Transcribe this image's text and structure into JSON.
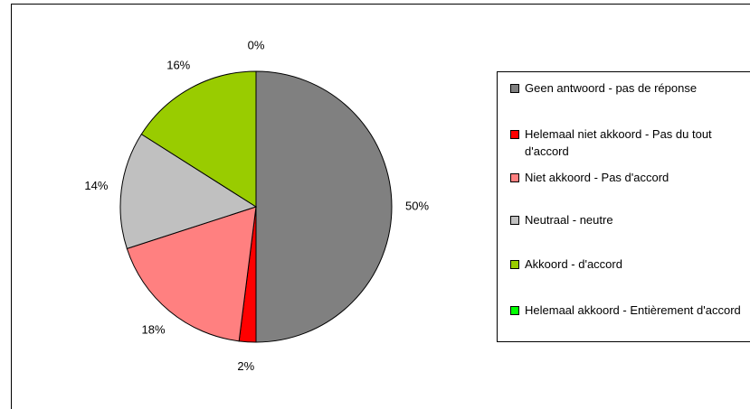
{
  "chart_data": {
    "type": "pie",
    "categories": [
      "Geen antwoord - pas de réponse",
      "Helemaal niet akkoord - Pas du tout d'accord",
      "Niet akkoord - Pas d'accord",
      "Neutraal - neutre",
      "Akkoord - d'accord",
      "Helemaal akkoord - Entièrement d'accord"
    ],
    "values": [
      50,
      2,
      18,
      14,
      16,
      0
    ],
    "value_labels": [
      "50%",
      "2%",
      "18%",
      "14%",
      "16%",
      "0%"
    ],
    "colors": [
      "#808080",
      "#ff0000",
      "#ff8080",
      "#c0c0c0",
      "#99cc00",
      "#00ff00"
    ],
    "legend": "right"
  }
}
